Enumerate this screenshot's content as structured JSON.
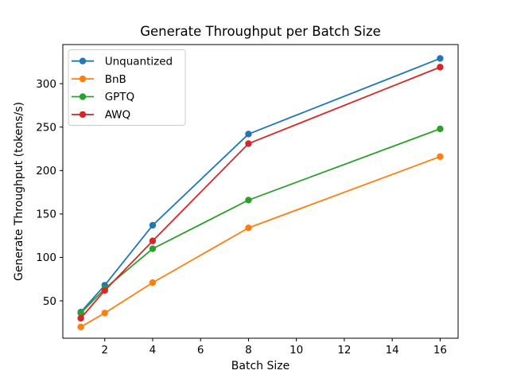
{
  "chart_data": {
    "type": "line",
    "title": "Generate Throughput per Batch Size",
    "xlabel": "Batch Size",
    "ylabel": "Generate Throughput (tokens/s)",
    "x": [
      1,
      2,
      4,
      8,
      16
    ],
    "series": [
      {
        "name": "Unquantized",
        "color": "#1f77b4",
        "values": [
          37,
          68,
          137,
          242,
          329
        ]
      },
      {
        "name": "BnB",
        "color": "#ff7f0e",
        "values": [
          20,
          36,
          71,
          134,
          216
        ]
      },
      {
        "name": "GPTQ",
        "color": "#2ca02c",
        "values": [
          36,
          64,
          110,
          166,
          248
        ]
      },
      {
        "name": "AWQ",
        "color": "#d62728",
        "values": [
          30,
          62,
          119,
          231,
          319
        ]
      }
    ],
    "xticks": [
      2,
      4,
      6,
      8,
      10,
      12,
      14,
      16
    ],
    "yticks": [
      50,
      100,
      150,
      200,
      250,
      300
    ],
    "xlim": [
      0.25,
      16.75
    ],
    "ylim": [
      7,
      345
    ],
    "grid": false,
    "marker": "o",
    "legend": {
      "position": "upper left",
      "entries": [
        "Unquantized",
        "BnB",
        "GPTQ",
        "AWQ"
      ]
    },
    "colors": {
      "spine": "#000000",
      "text": "#000000",
      "legend_border": "#cccccc",
      "background": "#ffffff"
    }
  }
}
